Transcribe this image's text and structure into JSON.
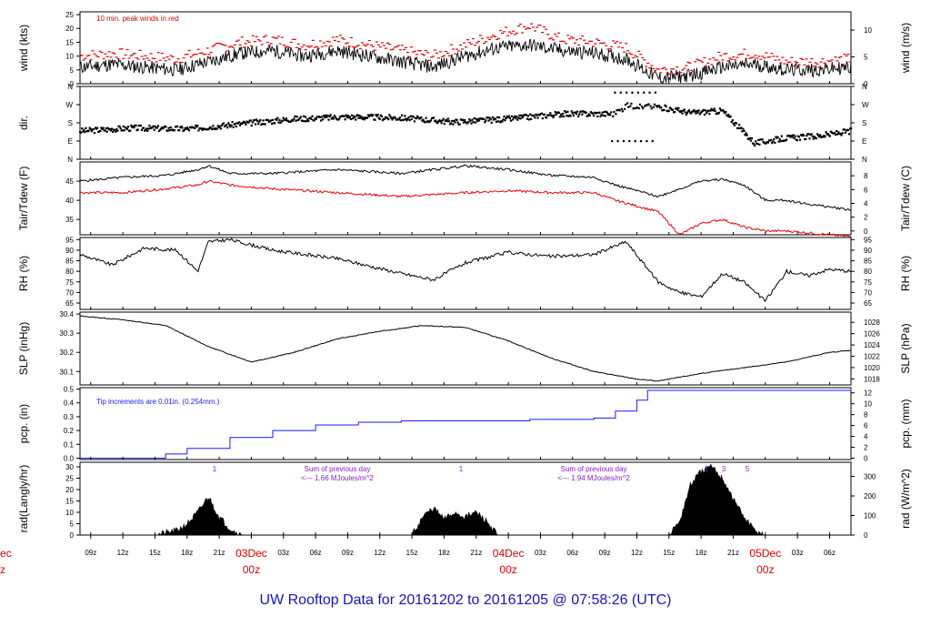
{
  "page": {
    "title": "UW Rooftop Data for 20161202  to  20161205 @ 07:58:26  (UTC)"
  },
  "colors": {
    "frame": "#000000",
    "peak": "#dd0000",
    "dew": "#ee0000",
    "precip": "#1a1aff",
    "annotation": "#8a1ad6",
    "day_label": "#dd0000",
    "title": "#1414c8"
  },
  "x_axis": {
    "tick_labels": [
      "09z",
      "12z",
      "15z",
      "18z",
      "21z",
      "03Dec",
      "03z",
      "06z",
      "09z",
      "12z",
      "15z",
      "18z",
      "21z",
      "04Dec",
      "03z",
      "06z",
      "09z",
      "12z",
      "15z",
      "18z",
      "21z",
      "05Dec",
      "03z",
      "06z"
    ],
    "day_labels": [
      {
        "date": "03Dec",
        "hour": "00z"
      },
      {
        "date": "04Dec",
        "hour": "00z"
      },
      {
        "date": "05Dec",
        "hour": "00z"
      }
    ],
    "clipped_left_labels": [
      "ec",
      "z"
    ]
  },
  "chart_data": [
    {
      "id": "wind",
      "type": "line",
      "x_unit": "hours since 2016-12-02 07:58Z",
      "ylabel": "wind (kts)",
      "ylabel_right": "wind (m/s)",
      "ylim": [
        0,
        26
      ],
      "yticks": [
        0,
        5,
        10,
        15,
        20,
        25
      ],
      "ylim_right": [
        0,
        13.4
      ],
      "yticks_right": [
        0,
        5,
        10
      ],
      "annotation": "10 min. peak winds in red",
      "series": [
        {
          "style": "black line",
          "x": [
            0,
            3,
            6,
            9,
            12,
            15,
            18,
            21,
            24,
            27,
            30,
            33,
            36,
            39,
            42,
            45,
            48,
            51,
            54,
            57,
            60,
            63,
            66,
            69,
            72
          ],
          "values": [
            6,
            7,
            6,
            5,
            8,
            11,
            12,
            10,
            12,
            10,
            8,
            6,
            10,
            13,
            14,
            12,
            11,
            9,
            2,
            3,
            6,
            7,
            5,
            5,
            6
          ]
        },
        {
          "style": "red dashes",
          "x": [
            0,
            3,
            6,
            9,
            12,
            15,
            18,
            21,
            24,
            27,
            30,
            33,
            36,
            39,
            42,
            45,
            48,
            51,
            54,
            57,
            60,
            63,
            66,
            69,
            72
          ],
          "values": [
            10,
            11,
            10,
            9,
            12,
            15,
            16,
            14,
            16,
            14,
            12,
            10,
            14,
            18,
            21,
            16,
            15,
            13,
            5,
            6,
            10,
            11,
            8,
            8,
            9
          ]
        }
      ]
    },
    {
      "id": "dir",
      "type": "scatter",
      "ylabel": "dir.",
      "y_categories": [
        "N",
        "W",
        "S",
        "E",
        "N"
      ],
      "ylim": [
        0,
        360
      ],
      "series": [
        {
          "x": [
            0,
            5,
            10,
            15,
            20,
            25,
            30,
            35,
            40,
            45,
            50,
            51,
            54,
            57,
            60,
            63,
            66,
            69,
            72
          ],
          "values": [
            140,
            155,
            150,
            175,
            200,
            210,
            205,
            185,
            200,
            225,
            225,
            265,
            260,
            230,
            240,
            80,
            105,
            115,
            140
          ]
        }
      ]
    },
    {
      "id": "temp",
      "type": "line",
      "ylabel": "Tair/Tdew (F)",
      "ylabel_right": "Tair/Tdew (C)",
      "ylim": [
        31,
        50
      ],
      "yticks": [
        35,
        40,
        45
      ],
      "yticks_right": [
        0,
        2,
        4,
        6,
        8
      ],
      "series": [
        {
          "style": "black",
          "x": [
            0,
            4,
            8,
            11,
            12,
            14,
            18,
            24,
            30,
            36,
            40,
            44,
            48,
            50,
            54,
            56,
            58,
            60,
            62,
            64,
            66,
            68,
            72
          ],
          "values": [
            45,
            46,
            46.5,
            48,
            49,
            47,
            47,
            48,
            47,
            49,
            48,
            46.5,
            46,
            44,
            41,
            43,
            45,
            45.5,
            44,
            40,
            40,
            39,
            37.5
          ]
        },
        {
          "style": "red",
          "x": [
            0,
            4,
            8,
            11,
            12,
            14,
            18,
            24,
            30,
            36,
            40,
            44,
            48,
            50,
            54,
            56,
            58,
            60,
            62,
            64,
            66,
            68,
            72
          ],
          "values": [
            42,
            42,
            43,
            44,
            45,
            44,
            43,
            42,
            41,
            42,
            42.5,
            42,
            42,
            40,
            37,
            31,
            34,
            35,
            33,
            32,
            32,
            31.5,
            30.5
          ]
        }
      ]
    },
    {
      "id": "rh",
      "type": "line",
      "ylabel": "RH (%)",
      "ylabel_right": "RH (%)",
      "ylim": [
        62,
        96
      ],
      "yticks": [
        65,
        70,
        75,
        80,
        85,
        90,
        95
      ],
      "series": [
        {
          "x": [
            0,
            3,
            6,
            9,
            11,
            12,
            14,
            18,
            24,
            30,
            33,
            36,
            40,
            44,
            48,
            51,
            54,
            56,
            58,
            60,
            62,
            64,
            66,
            68,
            70,
            72
          ],
          "values": [
            88,
            83,
            91,
            90,
            80,
            94,
            95,
            90,
            86,
            79,
            76,
            84,
            89,
            87,
            88,
            94,
            75,
            70,
            68,
            79,
            75,
            66,
            80,
            78,
            81,
            80
          ]
        }
      ]
    },
    {
      "id": "slp",
      "type": "line",
      "ylabel": "SLP (inHg)",
      "ylabel_right": "SLP (hPa)",
      "ylim": [
        30.03,
        30.41
      ],
      "yticks": [
        30.1,
        30.2,
        30.3,
        30.4
      ],
      "yticks_right": [
        1018,
        1020,
        1022,
        1024,
        1026,
        1028
      ],
      "series": [
        {
          "x": [
            0,
            4,
            8,
            12,
            16,
            20,
            24,
            28,
            32,
            36,
            40,
            44,
            48,
            52,
            54,
            58,
            62,
            66,
            70,
            72
          ],
          "values": [
            30.39,
            30.37,
            30.34,
            30.23,
            30.15,
            30.2,
            30.27,
            30.31,
            30.34,
            30.33,
            30.26,
            30.17,
            30.1,
            30.06,
            30.05,
            30.09,
            30.12,
            30.15,
            30.2,
            30.21
          ]
        }
      ]
    },
    {
      "id": "pcp",
      "type": "line",
      "ylabel": "pcp. (in)",
      "ylabel_right": "pcp. (mm)",
      "ylim": [
        -0.01,
        0.51
      ],
      "yticks": [
        0,
        0.1,
        0.2,
        0.3,
        0.4,
        0.5
      ],
      "yticks_right": [
        0,
        2,
        4,
        6,
        8,
        10,
        12
      ],
      "annotation": "Tip increments are 0.01in. (0.254mm.)",
      "series": [
        {
          "style": "blue step",
          "x": [
            0,
            6,
            8,
            10,
            14,
            18,
            22,
            26,
            30,
            36,
            42,
            46,
            48,
            50,
            52,
            53,
            72
          ],
          "values": [
            0,
            0,
            0.03,
            0.07,
            0.15,
            0.2,
            0.24,
            0.26,
            0.27,
            0.27,
            0.28,
            0.28,
            0.29,
            0.34,
            0.42,
            0.49,
            0.5
          ]
        }
      ]
    },
    {
      "id": "rad",
      "type": "area",
      "ylabel": "rad(Langly/hr)",
      "ylabel_right": "rad (W/m^2)",
      "ylim": [
        0,
        32
      ],
      "yticks": [
        0,
        5,
        10,
        15,
        20,
        25,
        30
      ],
      "yticks_right": [
        0,
        100,
        200,
        300
      ],
      "annotations": [
        {
          "text": "Sum of previous day",
          "sub": "<--- 1.66 MJoules/m^2"
        },
        {
          "text": "Sum of previous day",
          "sub": "<--- 1.94 MJoules/m^2"
        },
        {
          "text": "1"
        },
        {
          "text": "1"
        },
        {
          "text": "1"
        },
        {
          "text": "3"
        },
        {
          "text": "5"
        }
      ],
      "series": [
        {
          "x": [
            7,
            9,
            10,
            11,
            12,
            13,
            14,
            15,
            31,
            32,
            33,
            34,
            35,
            36,
            37,
            38,
            39,
            55,
            56,
            57,
            58,
            59,
            60,
            61,
            62,
            63,
            64
          ],
          "values": [
            0,
            2,
            5,
            10,
            17,
            8,
            3,
            0,
            0,
            8,
            12,
            7,
            10,
            8,
            10,
            6,
            0,
            0,
            6,
            22,
            28,
            30,
            25,
            16,
            8,
            2,
            0
          ]
        }
      ]
    }
  ]
}
